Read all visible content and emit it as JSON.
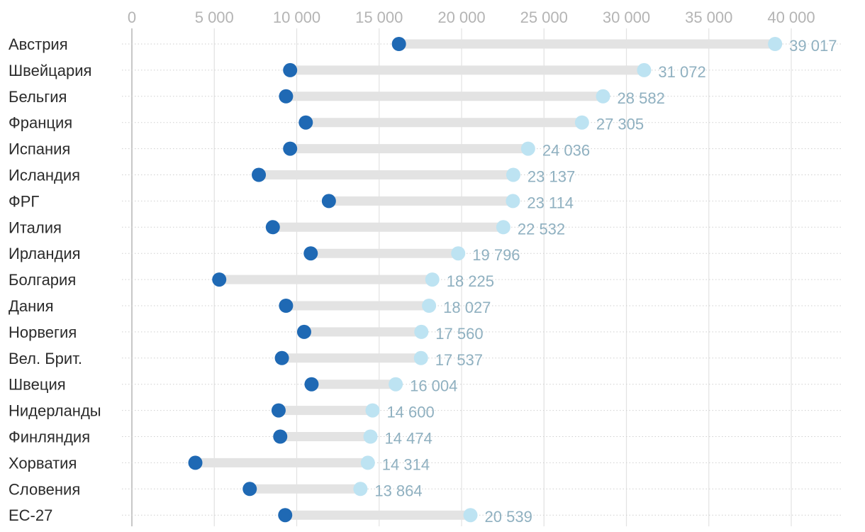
{
  "chart_data": {
    "type": "dumbbell",
    "title": "",
    "xlabel": "",
    "ylabel": "",
    "xlim": [
      0,
      40000
    ],
    "ticks": [
      0,
      5000,
      10000,
      15000,
      20000,
      25000,
      30000,
      35000,
      40000
    ],
    "tick_labels": [
      "0",
      "5 000",
      "10 000",
      "15 000",
      "20 000",
      "25 000",
      "30 000",
      "35 000",
      "40 000"
    ],
    "grid": true,
    "series": [
      {
        "name": "start",
        "color": "#1f69b4"
      },
      {
        "name": "end",
        "color": "#bde3f2"
      }
    ],
    "track_color": "#e3e3e3",
    "rows": [
      {
        "country": "Австрия",
        "start": 16200,
        "end": 39017,
        "end_label": "39 017"
      },
      {
        "country": "Швейцария",
        "start": 9600,
        "end": 31072,
        "end_label": "31 072"
      },
      {
        "country": "Бельгия",
        "start": 9350,
        "end": 28582,
        "end_label": "28 582"
      },
      {
        "country": "Франция",
        "start": 10550,
        "end": 27305,
        "end_label": "27 305"
      },
      {
        "country": "Испания",
        "start": 9600,
        "end": 24036,
        "end_label": "24 036"
      },
      {
        "country": "Исландия",
        "start": 7700,
        "end": 23137,
        "end_label": "23 137"
      },
      {
        "country": "ФРГ",
        "start": 11950,
        "end": 23114,
        "end_label": "23 114"
      },
      {
        "country": "Италия",
        "start": 8550,
        "end": 22532,
        "end_label": "22 532"
      },
      {
        "country": "Ирландия",
        "start": 10850,
        "end": 19796,
        "end_label": "19 796"
      },
      {
        "country": "Болгария",
        "start": 5300,
        "end": 18225,
        "end_label": "18 225"
      },
      {
        "country": "Дания",
        "start": 9350,
        "end": 18027,
        "end_label": "18 027"
      },
      {
        "country": "Норвегия",
        "start": 10450,
        "end": 17560,
        "end_label": "17 560"
      },
      {
        "country": "Вел. Брит.",
        "start": 9100,
        "end": 17537,
        "end_label": "17 537"
      },
      {
        "country": "Швеция",
        "start": 10900,
        "end": 16004,
        "end_label": "16 004"
      },
      {
        "country": "Нидерланды",
        "start": 8900,
        "end": 14600,
        "end_label": "14 600"
      },
      {
        "country": "Финляндия",
        "start": 9000,
        "end": 14474,
        "end_label": "14 474"
      },
      {
        "country": "Хорватия",
        "start": 3850,
        "end": 14314,
        "end_label": "14 314"
      },
      {
        "country": "Словения",
        "start": 7150,
        "end": 13864,
        "end_label": "13 864"
      },
      {
        "country": "ЕС-27",
        "start": 9300,
        "end": 20539,
        "end_label": "20 539"
      }
    ]
  }
}
